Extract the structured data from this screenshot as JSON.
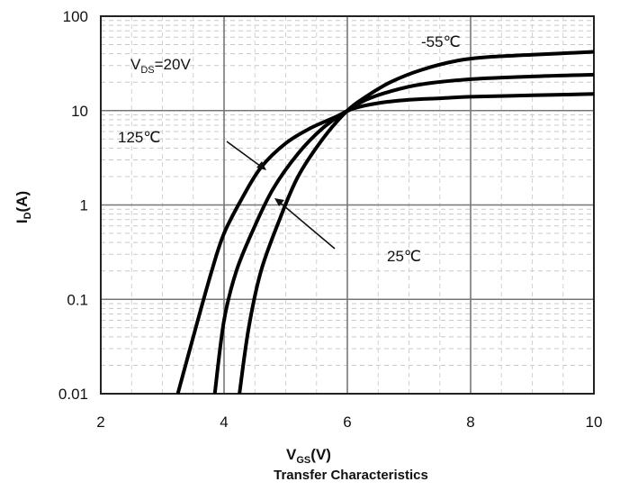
{
  "chart_data": {
    "type": "line",
    "title": "Transfer Characteristics",
    "xlabel_main": "V",
    "xlabel_sub": "GS",
    "xlabel_unit": "(V)",
    "ylabel_main": "I",
    "ylabel_sub": "D",
    "ylabel_unit": "(A)",
    "xlim": [
      2,
      10
    ],
    "ylim": [
      0.01,
      100
    ],
    "y_scale": "log",
    "grid": true,
    "x_ticks": [
      2,
      4,
      6,
      8,
      10
    ],
    "x_tick_labels": [
      "2",
      "4",
      "6",
      "8",
      "10"
    ],
    "y_ticks": [
      0.01,
      0.1,
      1,
      10,
      100
    ],
    "y_tick_labels": [
      "0.01",
      "0.1",
      "1",
      "10",
      "100"
    ],
    "condition_main": "V",
    "condition_sub": "DS",
    "condition_value": "=20V",
    "series": [
      {
        "name": "125℃",
        "x": [
          3.25,
          3.5,
          3.8,
          4.0,
          4.3,
          4.6,
          5.0,
          5.4,
          5.8,
          6.1,
          6.5,
          7.0,
          7.5,
          8.0,
          9.0,
          10.0
        ],
        "y": [
          0.01,
          0.04,
          0.2,
          0.5,
          1.2,
          2.5,
          4.5,
          6.5,
          8.5,
          10.5,
          12,
          13,
          13.5,
          14,
          14.5,
          15
        ]
      },
      {
        "name": "25℃",
        "x": [
          3.85,
          4.0,
          4.2,
          4.5,
          4.8,
          5.2,
          5.6,
          6.0,
          6.3,
          6.7,
          7.2,
          8.0,
          9.0,
          10.0
        ],
        "y": [
          0.01,
          0.06,
          0.2,
          0.6,
          1.5,
          3.5,
          6.5,
          10,
          13,
          16,
          19,
          21.5,
          23,
          24
        ]
      },
      {
        "name": "-55℃",
        "x": [
          4.25,
          4.4,
          4.6,
          4.9,
          5.2,
          5.6,
          6.0,
          6.3,
          6.7,
          7.2,
          7.8,
          8.3,
          9.0,
          10.0
        ],
        "y": [
          0.01,
          0.05,
          0.2,
          0.7,
          2.0,
          5.0,
          10,
          14,
          20,
          27,
          34,
          37,
          39,
          42
        ]
      }
    ],
    "annotations": {
      "t125": "125℃",
      "t25": "25℃",
      "tm55": "-55℃"
    }
  }
}
